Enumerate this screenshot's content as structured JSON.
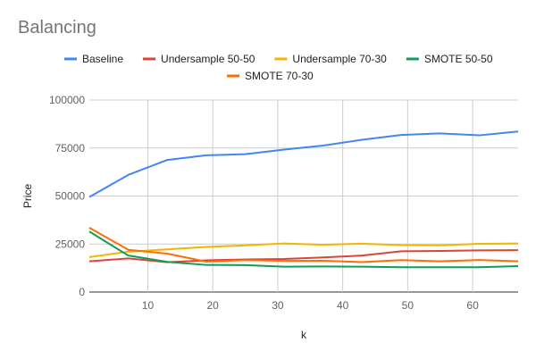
{
  "chart_data": {
    "type": "line",
    "title": "Balancing",
    "xlabel": "k",
    "ylabel": "Price",
    "xlim": [
      1,
      67
    ],
    "ylim": [
      0,
      100000
    ],
    "x_ticks": [
      10,
      20,
      30,
      40,
      50,
      60
    ],
    "y_ticks": [
      0,
      25000,
      50000,
      75000,
      100000
    ],
    "y_tick_labels": [
      "0",
      "25000",
      "50000",
      "75000",
      "100000"
    ],
    "grid": true,
    "legend_position": "top",
    "series": [
      {
        "name": "Baseline",
        "color": "#4285F4",
        "x": [
          1,
          7,
          13,
          19,
          25,
          31,
          37,
          43,
          49,
          55,
          61,
          67
        ],
        "values": [
          49500,
          61000,
          68800,
          71200,
          71800,
          74200,
          76300,
          79300,
          81800,
          82600,
          81600,
          83600
        ]
      },
      {
        "name": "Undersample 50-50",
        "color": "#DB4437",
        "x": [
          1,
          7,
          13,
          19,
          25,
          31,
          37,
          43,
          49,
          55,
          61,
          67
        ],
        "values": [
          16000,
          17500,
          15500,
          16500,
          17000,
          17200,
          18000,
          19000,
          21200,
          21400,
          21700,
          21800
        ]
      },
      {
        "name": "Undersample 70-30",
        "color": "#F4B400",
        "x": [
          1,
          7,
          13,
          19,
          25,
          31,
          37,
          43,
          49,
          55,
          61,
          67
        ],
        "values": [
          18200,
          21000,
          22200,
          23500,
          24300,
          25300,
          24600,
          25200,
          24400,
          24300,
          25100,
          25300
        ]
      },
      {
        "name": "SMOTE 50-50",
        "color": "#0F9D58",
        "x": [
          1,
          7,
          13,
          19,
          25,
          31,
          37,
          43,
          49,
          55,
          61,
          67
        ],
        "values": [
          31500,
          19000,
          15700,
          14100,
          14000,
          13200,
          13300,
          13200,
          12900,
          12900,
          12900,
          13500
        ]
      },
      {
        "name": "SMOTE 70-30",
        "color": "#FF6D00",
        "x": [
          1,
          7,
          13,
          19,
          25,
          31,
          37,
          43,
          49,
          55,
          61,
          67
        ],
        "values": [
          33500,
          22000,
          20000,
          15800,
          16600,
          16200,
          16300,
          15600,
          16600,
          16000,
          16700,
          16000
        ]
      }
    ]
  }
}
